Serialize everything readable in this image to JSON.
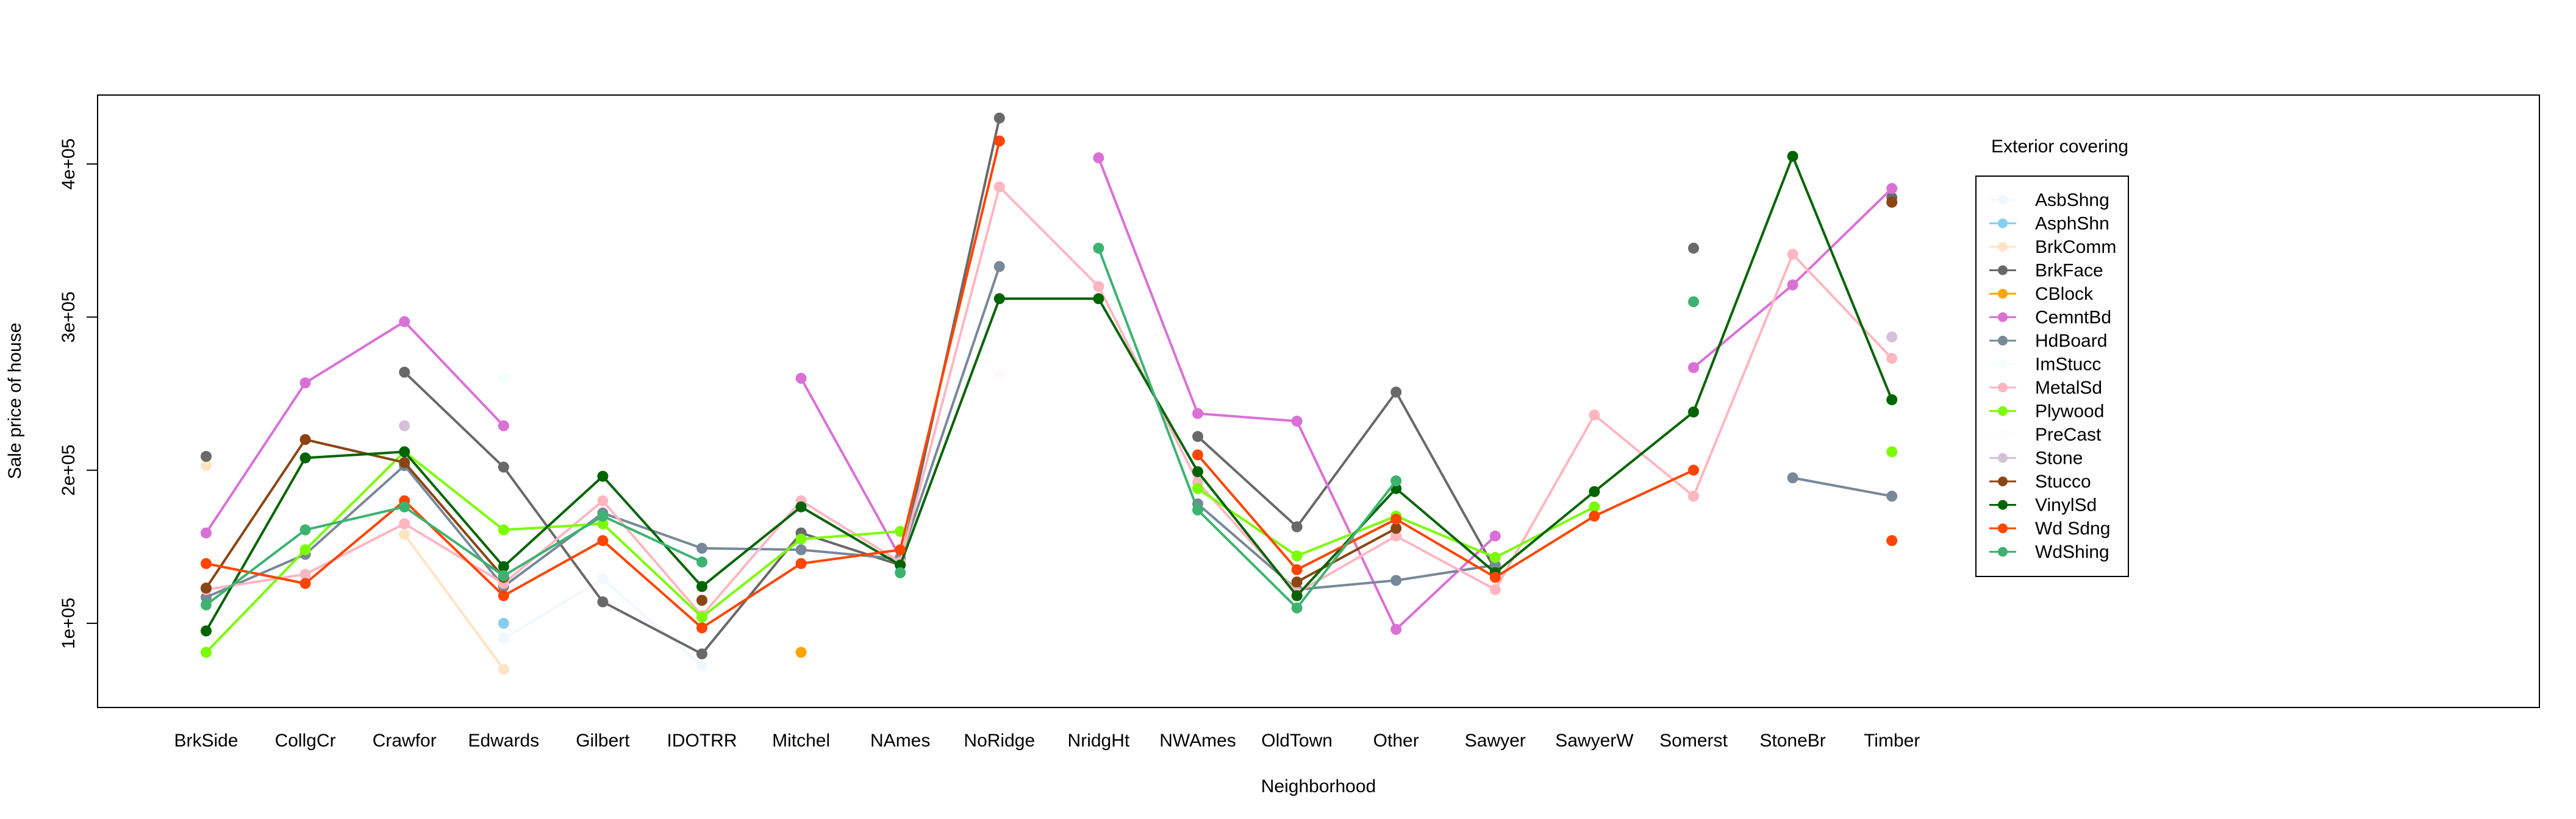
{
  "chart_data": {
    "type": "line",
    "title": "",
    "xlabel": "Neighborhood",
    "ylabel": "Sale price of house",
    "ylim": [
      45000,
      445000
    ],
    "y_ticks": [
      100000,
      200000,
      300000,
      400000
    ],
    "y_tick_labels": [
      "1e+05",
      "2e+05",
      "3e+05",
      "4e+05"
    ],
    "categories": [
      "BrkSide",
      "CollgCr",
      "Crawfor",
      "Edwards",
      "Gilbert",
      "IDOTRR",
      "Mitchel",
      "NAmes",
      "NoRidge",
      "NridgHt",
      "NWAmes",
      "OldTown",
      "Other",
      "Sawyer",
      "SawyerW",
      "Somerst",
      "StoneBr",
      "Timber"
    ],
    "legend_title": "Exterior covering",
    "legend_position": "right",
    "marker": "filled-circle",
    "series": [
      {
        "name": "AsbShng",
        "color": "#F0F8FF",
        "values": [
          null,
          null,
          null,
          90000,
          129000,
          72000,
          null,
          null,
          null,
          null,
          null,
          null,
          null,
          null,
          null,
          null,
          null,
          null
        ]
      },
      {
        "name": "AsphShn",
        "color": "#87CEEB",
        "values": [
          null,
          null,
          null,
          100000,
          null,
          null,
          null,
          null,
          null,
          null,
          null,
          null,
          null,
          null,
          null,
          null,
          null,
          null
        ]
      },
      {
        "name": "BrkComm",
        "color": "#FFE4C4",
        "values": [
          203000,
          null,
          158000,
          70000,
          null,
          null,
          null,
          null,
          null,
          null,
          null,
          null,
          null,
          null,
          null,
          null,
          null,
          null
        ]
      },
      {
        "name": "BrkFace",
        "color": "#696969",
        "values": [
          209000,
          null,
          264000,
          202000,
          114000,
          80000,
          159000,
          138000,
          430000,
          null,
          222000,
          163000,
          251000,
          135000,
          null,
          345000,
          null,
          378000
        ]
      },
      {
        "name": "CBlock",
        "color": "#FFA500",
        "values": [
          null,
          null,
          null,
          null,
          null,
          null,
          81000,
          null,
          null,
          null,
          null,
          null,
          null,
          null,
          null,
          null,
          null,
          null
        ]
      },
      {
        "name": "CemntBd",
        "color": "#DA70D6",
        "values": [
          159000,
          257000,
          297000,
          229000,
          null,
          null,
          260000,
          143000,
          null,
          404000,
          237000,
          232000,
          96000,
          157000,
          null,
          267000,
          321000,
          384000
        ]
      },
      {
        "name": "HdBoard",
        "color": "#778899",
        "values": [
          117000,
          145000,
          203000,
          124000,
          172000,
          149000,
          148000,
          142000,
          333000,
          null,
          178000,
          122000,
          128000,
          138000,
          null,
          null,
          195000,
          183000
        ]
      },
      {
        "name": "ImStucc",
        "color": "#F5FFFA",
        "values": [
          null,
          null,
          null,
          260000,
          null,
          null,
          null,
          null,
          null,
          null,
          null,
          null,
          null,
          null,
          null,
          null,
          null,
          null
        ]
      },
      {
        "name": "MetalSd",
        "color": "#FFB6C1",
        "values": [
          122000,
          132000,
          165000,
          126000,
          180000,
          105000,
          180000,
          140000,
          385000,
          320000,
          192000,
          120000,
          157000,
          122000,
          236000,
          183000,
          341000,
          273000
        ]
      },
      {
        "name": "Plywood",
        "color": "#7CFC00",
        "values": [
          81000,
          148000,
          212000,
          161000,
          165000,
          104000,
          155000,
          160000,
          null,
          null,
          188000,
          144000,
          170000,
          143000,
          176000,
          null,
          null,
          212000
        ]
      },
      {
        "name": "PreCast",
        "color": "#FFFAFA",
        "values": [
          null,
          null,
          null,
          null,
          null,
          null,
          null,
          null,
          262000,
          null,
          null,
          null,
          null,
          null,
          null,
          null,
          null,
          null
        ]
      },
      {
        "name": "Stone",
        "color": "#D8BFD8",
        "values": [
          null,
          null,
          229000,
          null,
          null,
          null,
          null,
          null,
          null,
          null,
          null,
          null,
          null,
          null,
          null,
          null,
          null,
          287000
        ]
      },
      {
        "name": "Stucco",
        "color": "#8B4513",
        "values": [
          123000,
          220000,
          205000,
          130000,
          null,
          115000,
          null,
          null,
          null,
          null,
          null,
          127000,
          162000,
          null,
          null,
          null,
          null,
          375000
        ]
      },
      {
        "name": "VinylSd",
        "color": "#006400",
        "values": [
          95000,
          208000,
          212000,
          137000,
          196000,
          124000,
          176000,
          138000,
          312000,
          312000,
          199000,
          118000,
          188000,
          133000,
          186000,
          238000,
          405000,
          246000
        ]
      },
      {
        "name": "Wd Sdng",
        "color": "#FF4500",
        "values": [
          139000,
          126000,
          180000,
          118000,
          154000,
          97000,
          139000,
          148000,
          415000,
          null,
          210000,
          135000,
          168000,
          130000,
          170000,
          200000,
          null,
          154000
        ]
      },
      {
        "name": "WdShing",
        "color": "#3CB371",
        "values": [
          112000,
          161000,
          176000,
          131000,
          170000,
          140000,
          null,
          133000,
          null,
          345000,
          174000,
          110000,
          193000,
          null,
          null,
          310000,
          null,
          null
        ]
      }
    ]
  }
}
